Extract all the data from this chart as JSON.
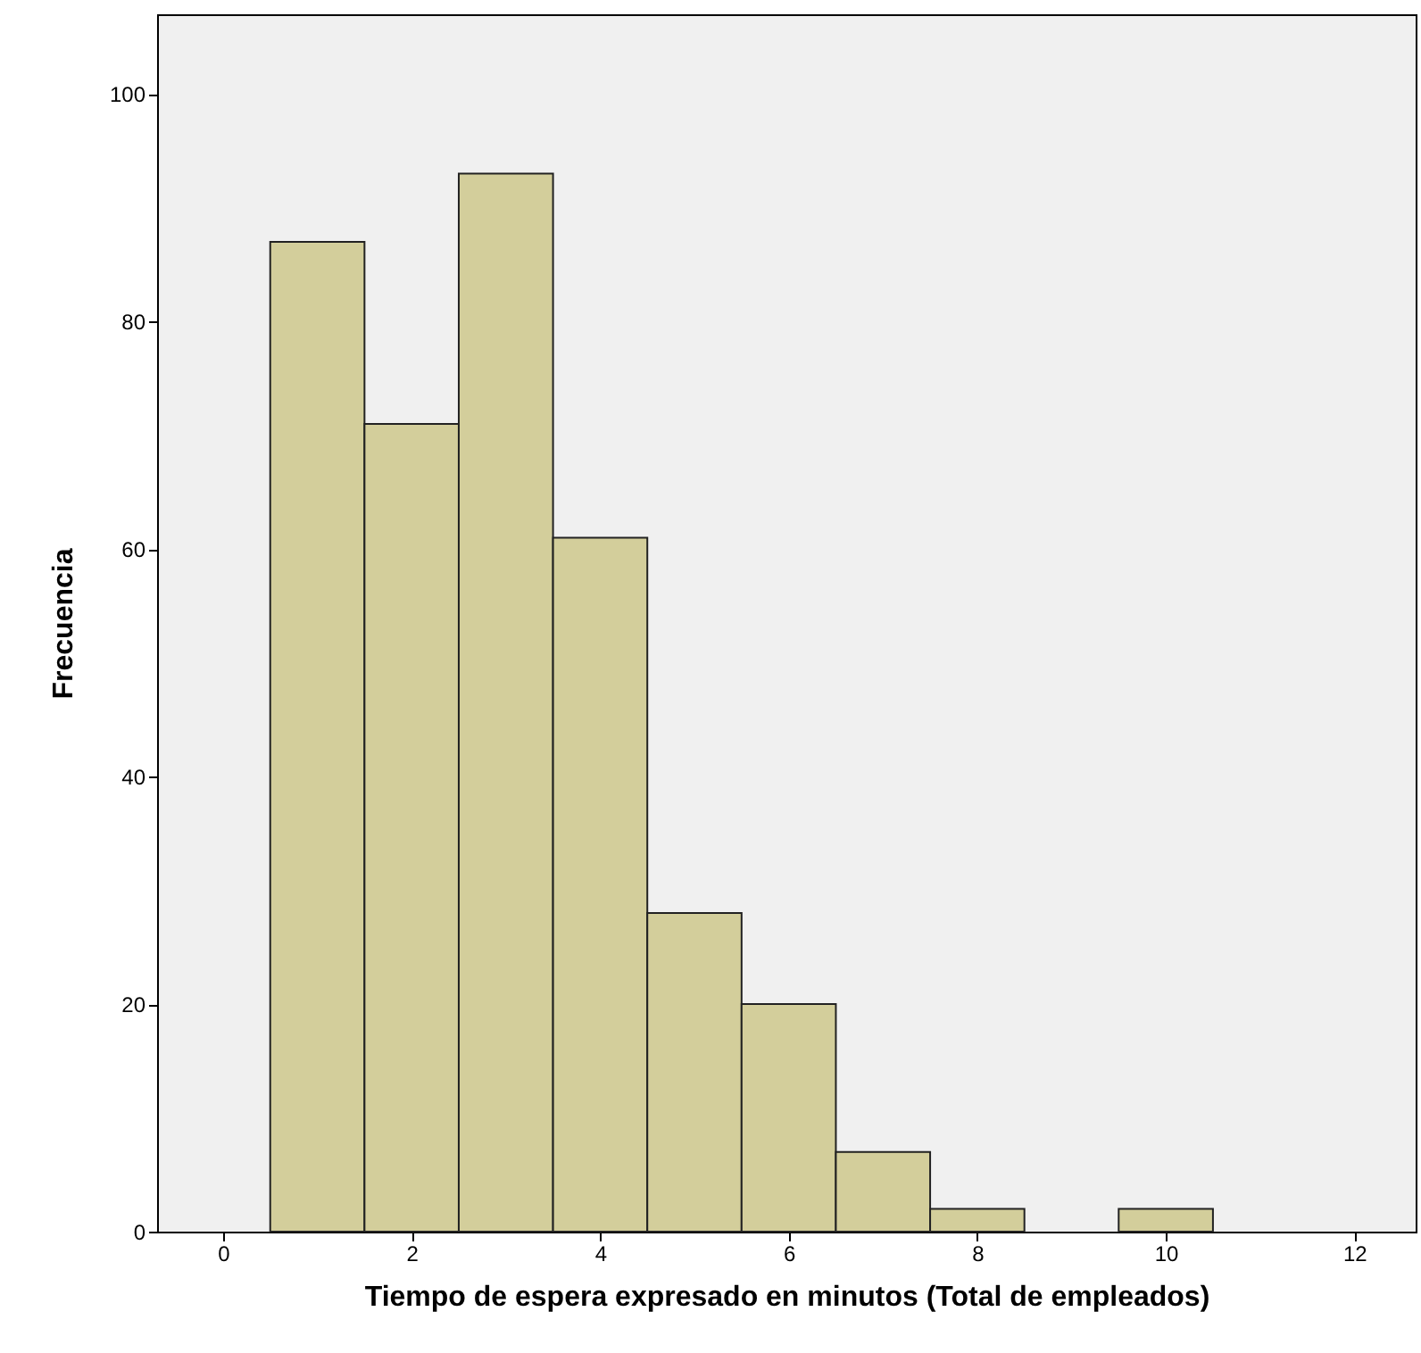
{
  "chart_data": {
    "type": "histogram",
    "xlabel": "Tiempo de espera expresado en minutos (Total de empleados)",
    "ylabel": "Frecuencia",
    "bins": [
      0.5,
      1.5,
      2.5,
      3.5,
      4.5,
      5.5,
      6.5,
      7.5,
      8.5,
      9.5,
      10.5
    ],
    "values": [
      87,
      71,
      93,
      61,
      28,
      20,
      7,
      2,
      0,
      2
    ],
    "color": "#d3ce9b",
    "xlim": [
      -0.7,
      12.65
    ],
    "xticks": [
      0,
      2,
      4,
      6,
      8,
      10,
      12
    ],
    "ylim": [
      0,
      107
    ],
    "yticks": [
      0,
      20,
      40,
      60,
      80,
      100
    ],
    "grid": false
  }
}
